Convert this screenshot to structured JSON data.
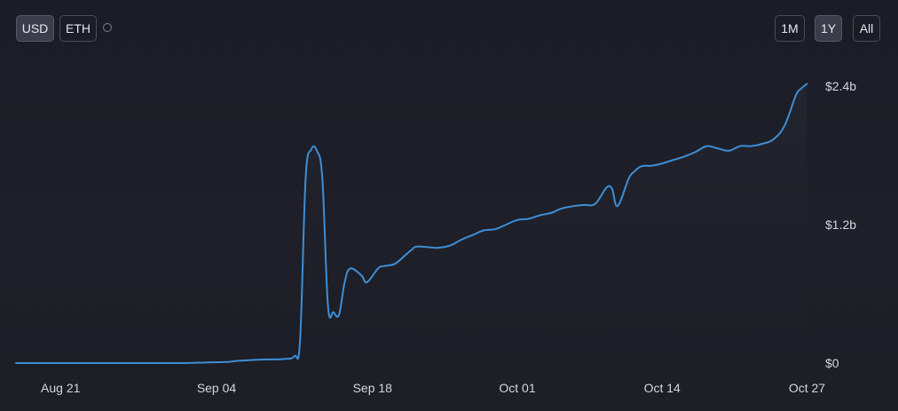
{
  "currency_toggle": {
    "usd_label": "USD",
    "eth_label": "ETH",
    "selected": "USD"
  },
  "range_toggle": {
    "one_month_label": "1M",
    "one_year_label": "1Y",
    "all_label": "All",
    "selected": "1Y"
  },
  "colors": {
    "line": "#3d8ed6",
    "background": "#1d1e27"
  },
  "chart_data": {
    "type": "line",
    "title": "",
    "xlabel": "",
    "ylabel": "",
    "x_axis": {
      "type": "date",
      "range": [
        "2023-08-17",
        "2023-10-28"
      ],
      "tick_labels": [
        "Aug 21",
        "Sep 04",
        "Sep 18",
        "Oct 01",
        "Oct 14",
        "Oct 27"
      ],
      "tick_dates": [
        "2023-08-21",
        "2023-09-04",
        "2023-09-18",
        "2023-10-01",
        "2023-10-14",
        "2023-10-27"
      ]
    },
    "y_axis": {
      "position": "right",
      "range": [
        0,
        2.4
      ],
      "unit": "billion USD",
      "tick_values": [
        0,
        1.2,
        2.4
      ],
      "tick_labels": [
        "$0",
        "$1.2b",
        "$2.4b"
      ]
    },
    "grid": false,
    "legend": "none",
    "series": [
      {
        "x": [
          "2023-08-17",
          "2023-08-21",
          "2023-08-25",
          "2023-08-29",
          "2023-09-01",
          "2023-09-03",
          "2023-09-05",
          "2023-09-06",
          "2023-09-08",
          "2023-09-10",
          "2023-09-11",
          "2023-09-11T12",
          "2023-09-12",
          "2023-09-12T12",
          "2023-09-13",
          "2023-09-13T12",
          "2023-09-14",
          "2023-09-14T12",
          "2023-09-15",
          "2023-09-15T12",
          "2023-09-16",
          "2023-09-17",
          "2023-09-17T12",
          "2023-09-18T12",
          "2023-09-19",
          "2023-09-20",
          "2023-09-21",
          "2023-09-21T12",
          "2023-09-22",
          "2023-09-23T12",
          "2023-09-24",
          "2023-09-25",
          "2023-09-26",
          "2023-09-27",
          "2023-09-28",
          "2023-09-29",
          "2023-09-30",
          "2023-10-01",
          "2023-10-02",
          "2023-10-03",
          "2023-10-04",
          "2023-10-04T12",
          "2023-10-05",
          "2023-10-06",
          "2023-10-07",
          "2023-10-08",
          "2023-10-09",
          "2023-10-09T12",
          "2023-10-10",
          "2023-10-11",
          "2023-10-11T12",
          "2023-10-12",
          "2023-10-12T12",
          "2023-10-13",
          "2023-10-14",
          "2023-10-15",
          "2023-10-16",
          "2023-10-17",
          "2023-10-18",
          "2023-10-19",
          "2023-10-20",
          "2023-10-21",
          "2023-10-22",
          "2023-10-23",
          "2023-10-24",
          "2023-10-25",
          "2023-10-26",
          "2023-10-26T12",
          "2023-10-27"
        ],
        "y": [
          0.0,
          0.0,
          0.0,
          0.0,
          0.0,
          0.005,
          0.01,
          0.02,
          0.03,
          0.035,
          0.06,
          0.2,
          1.6,
          1.85,
          1.84,
          1.6,
          0.5,
          0.44,
          0.42,
          0.7,
          0.82,
          0.76,
          0.7,
          0.82,
          0.84,
          0.86,
          0.94,
          0.98,
          1.01,
          1.0,
          1.0,
          1.02,
          1.07,
          1.11,
          1.15,
          1.16,
          1.2,
          1.24,
          1.25,
          1.28,
          1.3,
          1.32,
          1.34,
          1.36,
          1.37,
          1.38,
          1.52,
          1.51,
          1.36,
          1.6,
          1.66,
          1.7,
          1.71,
          1.71,
          1.73,
          1.76,
          1.79,
          1.83,
          1.88,
          1.86,
          1.84,
          1.88,
          1.88,
          1.9,
          1.94,
          2.06,
          2.32,
          2.38,
          2.42
        ]
      }
    ]
  }
}
